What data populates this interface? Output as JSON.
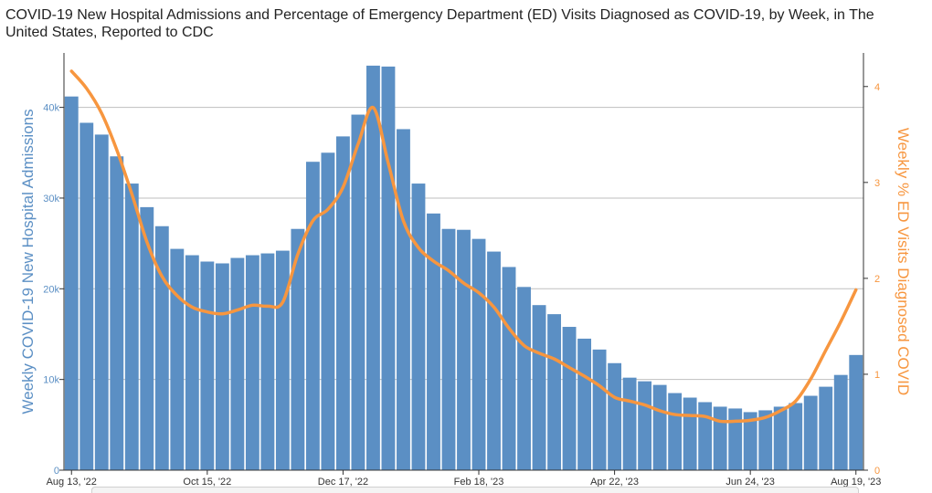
{
  "title": "COVID-19 New Hospital Admissions and Percentage of Emergency Department (ED) Visits Diagnosed as COVID-19, by Week, in The United States, Reported to CDC",
  "colors": {
    "bar": "#5b8fc4",
    "line": "#f7963f",
    "left_axis_text": "#5b8fc4",
    "right_axis_text": "#f7963f",
    "grid": "#bfbfbf"
  },
  "chart_data": {
    "type": "bar+line",
    "x_tick_labels": [
      "Aug 13, '22",
      "Oct 15, '22",
      "Dec 17, '22",
      "Feb 18, '23",
      "Apr 22, '23",
      "Jun 24, '23",
      "Aug 19, '23"
    ],
    "left_axis": {
      "label": "Weekly COVID-19 New Hospital Admissions",
      "ticks": [
        "0",
        "10k",
        "20k",
        "30k",
        "40k"
      ],
      "ylim": [
        0,
        46000
      ]
    },
    "right_axis": {
      "label": "Weekly % ED Visits Diagnosed COVID",
      "ticks": [
        "0",
        "1",
        "2",
        "3",
        "4"
      ],
      "ylim": [
        0,
        4.35
      ]
    },
    "grid": true,
    "series": [
      {
        "name": "Weekly COVID-19 New Hospital Admissions",
        "type": "bar",
        "axis": "left",
        "values": [
          41200,
          38300,
          37000,
          34600,
          31600,
          29000,
          26900,
          24400,
          23700,
          23000,
          22800,
          23400,
          23700,
          23900,
          24200,
          26600,
          34000,
          35000,
          36800,
          39200,
          44600,
          44500,
          37600,
          31600,
          28300,
          26600,
          26500,
          25500,
          24100,
          22400,
          20200,
          18200,
          17200,
          15800,
          14500,
          13300,
          11800,
          10200,
          9800,
          9400,
          8500,
          8000,
          7500,
          7000,
          6800,
          6400,
          6600,
          7000,
          7400,
          8200,
          9200,
          10500,
          12700
        ]
      },
      {
        "name": "Weekly % ED Visits Diagnosed COVID",
        "type": "line",
        "axis": "right",
        "values": [
          4.16,
          3.98,
          3.72,
          3.34,
          2.88,
          2.38,
          2.02,
          1.82,
          1.7,
          1.65,
          1.63,
          1.67,
          1.72,
          1.71,
          1.75,
          2.25,
          2.6,
          2.72,
          2.95,
          3.4,
          3.78,
          3.2,
          2.6,
          2.32,
          2.18,
          2.08,
          1.95,
          1.85,
          1.7,
          1.48,
          1.3,
          1.22,
          1.16,
          1.07,
          0.98,
          0.88,
          0.76,
          0.72,
          0.68,
          0.62,
          0.58,
          0.57,
          0.56,
          0.51,
          0.51,
          0.52,
          0.55,
          0.62,
          0.72,
          0.95,
          1.25,
          1.55,
          1.88
        ]
      }
    ]
  }
}
